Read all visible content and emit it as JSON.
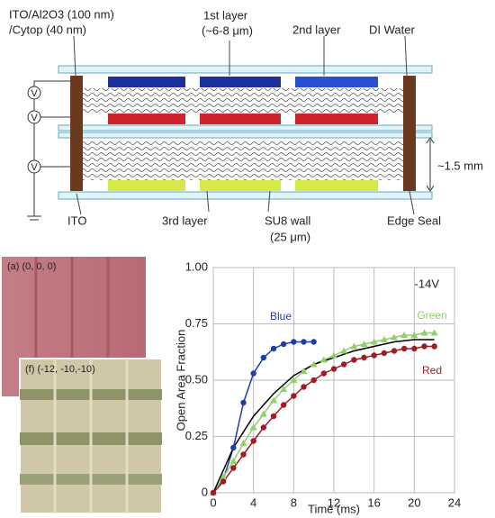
{
  "diagram": {
    "labels": [
      "ITO/Al2O3 (100 nm)",
      "/Cytop (40 nm)",
      "1st layer",
      "(~6-8 μm)",
      "2nd layer",
      "DI Water",
      "~1.5 mm",
      "ITO",
      "3rd layer",
      "SU8 wall",
      "(25 μm)",
      "Edge Seal"
    ],
    "sources": [
      "V",
      "V",
      "V"
    ]
  },
  "photos": [
    "(a) (0, 0, 0)",
    "(f) (-12, -10,-10)"
  ],
  "chart_data": {
    "type": "line",
    "annotation": "-14V",
    "x_label": "Time (ms)",
    "y_label": "Open Area Fraction",
    "xlim": [
      0,
      24
    ],
    "xticks": [
      0,
      4,
      8,
      12,
      16,
      20,
      24
    ],
    "ylim": [
      0,
      1
    ],
    "yticks": [
      0,
      0.25,
      {
        "value": 0.5,
        "label": "0.50"
      },
      0.75,
      {
        "value": 1,
        "label": "1.00"
      }
    ],
    "grid": true,
    "series": [
      {
        "name": "Blue",
        "color": "#1f3fa8",
        "marker": "circle",
        "x": [
          0,
          1,
          2,
          3,
          4,
          5,
          6,
          7,
          8,
          9,
          10
        ],
        "values": [
          0,
          0.06,
          0.2,
          0.4,
          0.53,
          0.6,
          0.64,
          0.66,
          0.67,
          0.67,
          0.67
        ]
      },
      {
        "name": "Green",
        "color": "#8fd06a",
        "marker": "triangle",
        "x": [
          0,
          1,
          2,
          3,
          4,
          5,
          6,
          7,
          8,
          9,
          10,
          11,
          12,
          13,
          14,
          15,
          16,
          17,
          18,
          19,
          20,
          21,
          22
        ],
        "values": [
          0,
          0.07,
          0.14,
          0.22,
          0.29,
          0.35,
          0.41,
          0.46,
          0.5,
          0.54,
          0.57,
          0.59,
          0.61,
          0.63,
          0.65,
          0.66,
          0.67,
          0.68,
          0.69,
          0.7,
          0.7,
          0.71,
          0.71
        ]
      },
      {
        "name": "Red",
        "color": "#a01c25",
        "marker": "circle",
        "x": [
          0,
          1,
          2,
          3,
          4,
          5,
          6,
          7,
          8,
          9,
          10,
          11,
          12,
          13,
          14,
          15,
          16,
          17,
          18,
          19,
          20,
          21,
          22
        ],
        "values": [
          0,
          0.05,
          0.11,
          0.17,
          0.23,
          0.29,
          0.34,
          0.39,
          0.43,
          0.47,
          0.5,
          0.53,
          0.55,
          0.57,
          0.59,
          0.6,
          0.61,
          0.62,
          0.63,
          0.64,
          0.64,
          0.65,
          0.65
        ]
      }
    ],
    "fit": {
      "color": "#000000",
      "x": [
        0,
        2,
        4,
        6,
        8,
        10,
        12,
        14,
        16,
        18,
        20,
        22
      ],
      "values": [
        0,
        0.2,
        0.34,
        0.44,
        0.52,
        0.57,
        0.6,
        0.63,
        0.65,
        0.67,
        0.68,
        0.68
      ]
    }
  }
}
